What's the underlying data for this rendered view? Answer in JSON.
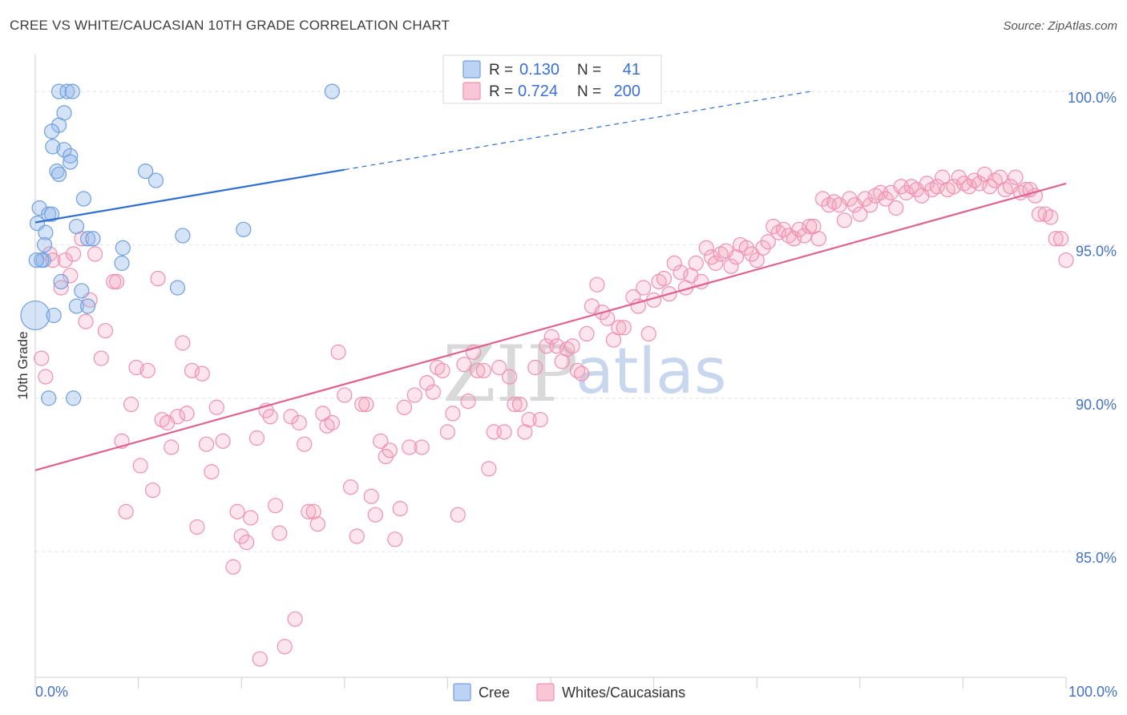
{
  "title": "CREE VS WHITE/CAUCASIAN 10TH GRADE CORRELATION CHART",
  "source": "Source: ZipAtlas.com",
  "watermark": {
    "part1": "ZIP",
    "part2": "atlas"
  },
  "legend": {
    "r_label": "R =",
    "n_label": "N =",
    "rows": [
      {
        "name": "Cree",
        "r": "0.130",
        "n": "41"
      },
      {
        "name": "Whites/Caucasians",
        "r": "0.724",
        "n": "200"
      }
    ]
  },
  "colors": {
    "cree": "#6f9fe0",
    "cree_line": "#2f6fd0",
    "white": "#f090b0",
    "white_line": "#e0628e",
    "tick_label": "#4472c4"
  },
  "chart_data": {
    "type": "scatter",
    "title": "CREE VS WHITE/CAUCASIAN 10TH GRADE CORRELATION CHART",
    "xlabel": "",
    "ylabel": "10th Grade",
    "xlim": [
      0,
      100
    ],
    "ylim": [
      80.9,
      101.1
    ],
    "x_tick_labels": [
      "0.0%",
      "100.0%"
    ],
    "y_ticks": [
      85,
      90,
      95,
      100
    ],
    "y_tick_labels": [
      "85.0%",
      "90.0%",
      "95.0%",
      "100.0%"
    ],
    "grid": true,
    "series": [
      {
        "name": "Cree",
        "r": 0.13,
        "n": 41,
        "trend": {
          "x0": 0,
          "y0": 95.73,
          "x1": 30,
          "y1": 97.45,
          "dash_x1": 75.2,
          "dash_y1": 100.0
        },
        "points": [
          [
            2.3,
            100
          ],
          [
            3.1,
            100
          ],
          [
            3.6,
            100
          ],
          [
            28.8,
            100
          ],
          [
            2.8,
            99.3
          ],
          [
            2.3,
            98.9
          ],
          [
            1.6,
            98.7
          ],
          [
            1.7,
            98.2
          ],
          [
            2.8,
            98.1
          ],
          [
            3.4,
            97.9
          ],
          [
            3.4,
            97.7
          ],
          [
            2.1,
            97.4
          ],
          [
            2.3,
            97.3
          ],
          [
            10.7,
            97.4
          ],
          [
            11.7,
            97.1
          ],
          [
            4.7,
            96.5
          ],
          [
            0.4,
            96.2
          ],
          [
            1.3,
            96.0
          ],
          [
            1.6,
            96.0
          ],
          [
            0.2,
            95.7
          ],
          [
            4.0,
            95.6
          ],
          [
            20.2,
            95.5
          ],
          [
            1.0,
            95.4
          ],
          [
            14.3,
            95.3
          ],
          [
            5.1,
            95.2
          ],
          [
            5.6,
            95.2
          ],
          [
            0.9,
            95.0
          ],
          [
            8.5,
            94.9
          ],
          [
            0.8,
            94.5
          ],
          [
            0.6,
            94.5
          ],
          [
            8.4,
            94.4
          ],
          [
            2.5,
            93.8
          ],
          [
            4.5,
            93.5
          ],
          [
            13.8,
            93.6
          ],
          [
            4.0,
            93.0
          ],
          [
            5.1,
            93.0
          ],
          [
            0.0,
            92.7
          ],
          [
            1.8,
            92.7
          ],
          [
            1.3,
            90.0
          ],
          [
            3.7,
            90.0
          ],
          [
            0.1,
            94.5
          ]
        ]
      },
      {
        "name": "Whites/Caucasians",
        "r": 0.724,
        "n": 200,
        "trend": {
          "x0": 0,
          "y0": 87.65,
          "x1": 100,
          "y1": 97.0
        },
        "points": [
          [
            0.6,
            91.3
          ],
          [
            1.0,
            90.7
          ],
          [
            1.4,
            94.7
          ],
          [
            1.7,
            94.5
          ],
          [
            2.5,
            93.6
          ],
          [
            2.9,
            94.5
          ],
          [
            3.4,
            94.0
          ],
          [
            3.7,
            94.7
          ],
          [
            4.5,
            95.2
          ],
          [
            4.9,
            92.5
          ],
          [
            5.3,
            93.2
          ],
          [
            5.8,
            94.7
          ],
          [
            6.4,
            91.3
          ],
          [
            6.8,
            92.2
          ],
          [
            7.6,
            93.8
          ],
          [
            7.9,
            93.8
          ],
          [
            8.4,
            88.6
          ],
          [
            8.8,
            86.3
          ],
          [
            9.3,
            89.8
          ],
          [
            9.8,
            91.0
          ],
          [
            10.2,
            87.8
          ],
          [
            10.9,
            90.9
          ],
          [
            11.4,
            87.0
          ],
          [
            11.9,
            93.9
          ],
          [
            12.3,
            89.3
          ],
          [
            12.8,
            89.2
          ],
          [
            13.2,
            88.4
          ],
          [
            13.8,
            89.4
          ],
          [
            14.3,
            91.8
          ],
          [
            14.7,
            89.5
          ],
          [
            15.2,
            90.9
          ],
          [
            15.7,
            85.8
          ],
          [
            16.2,
            90.8
          ],
          [
            16.6,
            88.5
          ],
          [
            17.1,
            87.6
          ],
          [
            17.6,
            89.7
          ],
          [
            18.2,
            88.6
          ],
          [
            19.2,
            84.5
          ],
          [
            19.6,
            86.3
          ],
          [
            20.0,
            85.5
          ],
          [
            20.5,
            85.3
          ],
          [
            20.9,
            86.1
          ],
          [
            21.5,
            88.7
          ],
          [
            21.8,
            81.5
          ],
          [
            22.4,
            89.6
          ],
          [
            22.8,
            89.4
          ],
          [
            23.3,
            86.5
          ],
          [
            23.7,
            85.6
          ],
          [
            24.2,
            81.9
          ],
          [
            24.8,
            89.4
          ],
          [
            25.2,
            82.8
          ],
          [
            25.6,
            89.2
          ],
          [
            26.1,
            88.5
          ],
          [
            26.5,
            86.3
          ],
          [
            27.0,
            86.3
          ],
          [
            27.4,
            85.9
          ],
          [
            27.9,
            89.5
          ],
          [
            28.3,
            89.1
          ],
          [
            28.8,
            89.2
          ],
          [
            29.4,
            91.5
          ],
          [
            30.0,
            90.1
          ],
          [
            30.6,
            87.1
          ],
          [
            31.2,
            85.5
          ],
          [
            31.7,
            89.8
          ],
          [
            32.1,
            89.8
          ],
          [
            32.6,
            86.8
          ],
          [
            33.0,
            86.2
          ],
          [
            33.5,
            88.6
          ],
          [
            34.0,
            88.1
          ],
          [
            34.4,
            88.3
          ],
          [
            34.9,
            85.4
          ],
          [
            35.4,
            86.4
          ],
          [
            35.8,
            89.7
          ],
          [
            36.3,
            88.4
          ],
          [
            36.8,
            90.1
          ],
          [
            37.5,
            88.4
          ],
          [
            38.0,
            90.5
          ],
          [
            38.6,
            90.2
          ],
          [
            39.0,
            91.0
          ],
          [
            39.5,
            90.9
          ],
          [
            40.0,
            88.9
          ],
          [
            40.5,
            89.5
          ],
          [
            41.0,
            86.2
          ],
          [
            41.6,
            91.1
          ],
          [
            42.0,
            89.9
          ],
          [
            42.5,
            91.5
          ],
          [
            42.9,
            90.9
          ],
          [
            43.5,
            90.9
          ],
          [
            44.0,
            87.7
          ],
          [
            44.5,
            88.9
          ],
          [
            45.0,
            91.0
          ],
          [
            45.5,
            88.9
          ],
          [
            46.0,
            90.7
          ],
          [
            46.5,
            89.8
          ],
          [
            47.0,
            89.8
          ],
          [
            47.5,
            88.9
          ],
          [
            47.9,
            89.3
          ],
          [
            48.5,
            91.0
          ],
          [
            49.0,
            89.3
          ],
          [
            49.6,
            91.7
          ],
          [
            50.1,
            92.0
          ],
          [
            50.6,
            91.7
          ],
          [
            51.1,
            91.2
          ],
          [
            51.6,
            91.6
          ],
          [
            52.1,
            91.7
          ],
          [
            52.6,
            90.9
          ],
          [
            53.0,
            90.8
          ],
          [
            53.5,
            92.1
          ],
          [
            54.0,
            93.0
          ],
          [
            54.5,
            93.7
          ],
          [
            55.0,
            92.8
          ],
          [
            55.5,
            92.6
          ],
          [
            56.1,
            91.9
          ],
          [
            56.6,
            92.3
          ],
          [
            57.1,
            92.3
          ],
          [
            58.0,
            93.3
          ],
          [
            58.5,
            93.0
          ],
          [
            59.0,
            93.6
          ],
          [
            59.5,
            92.1
          ],
          [
            60.0,
            93.2
          ],
          [
            60.5,
            93.8
          ],
          [
            61.0,
            93.9
          ],
          [
            61.5,
            93.4
          ],
          [
            62.0,
            94.4
          ],
          [
            62.6,
            94.1
          ],
          [
            63.1,
            93.6
          ],
          [
            63.6,
            94.0
          ],
          [
            64.1,
            94.4
          ],
          [
            64.6,
            93.8
          ],
          [
            65.1,
            94.9
          ],
          [
            65.6,
            94.6
          ],
          [
            66.0,
            94.4
          ],
          [
            66.5,
            94.7
          ],
          [
            67.0,
            94.8
          ],
          [
            67.5,
            94.3
          ],
          [
            68.0,
            94.6
          ],
          [
            68.4,
            95.0
          ],
          [
            69.0,
            94.9
          ],
          [
            69.5,
            94.7
          ],
          [
            70.0,
            94.5
          ],
          [
            70.6,
            94.9
          ],
          [
            71.1,
            95.1
          ],
          [
            71.6,
            95.6
          ],
          [
            72.1,
            95.4
          ],
          [
            72.6,
            95.5
          ],
          [
            73.1,
            95.3
          ],
          [
            73.6,
            95.2
          ],
          [
            74.1,
            95.5
          ],
          [
            74.6,
            95.3
          ],
          [
            75.1,
            95.6
          ],
          [
            75.5,
            95.6
          ],
          [
            76.0,
            95.2
          ],
          [
            76.4,
            96.5
          ],
          [
            77.0,
            96.3
          ],
          [
            77.5,
            96.4
          ],
          [
            78.0,
            96.3
          ],
          [
            78.5,
            95.8
          ],
          [
            79.0,
            96.5
          ],
          [
            79.5,
            96.3
          ],
          [
            80.0,
            96.0
          ],
          [
            80.5,
            96.5
          ],
          [
            81.0,
            96.3
          ],
          [
            81.5,
            96.6
          ],
          [
            82.0,
            96.7
          ],
          [
            82.5,
            96.5
          ],
          [
            83.0,
            96.7
          ],
          [
            83.5,
            96.2
          ],
          [
            84.0,
            96.9
          ],
          [
            84.5,
            96.7
          ],
          [
            85.0,
            96.9
          ],
          [
            85.5,
            96.8
          ],
          [
            86.0,
            96.6
          ],
          [
            86.5,
            97.0
          ],
          [
            87.0,
            96.8
          ],
          [
            87.5,
            96.9
          ],
          [
            88.0,
            97.2
          ],
          [
            88.5,
            96.8
          ],
          [
            89.1,
            96.9
          ],
          [
            89.6,
            97.2
          ],
          [
            90.1,
            97.0
          ],
          [
            90.6,
            96.9
          ],
          [
            91.1,
            97.1
          ],
          [
            91.6,
            97.0
          ],
          [
            92.1,
            97.3
          ],
          [
            92.6,
            96.9
          ],
          [
            93.1,
            97.1
          ],
          [
            93.6,
            97.2
          ],
          [
            94.1,
            96.8
          ],
          [
            94.6,
            96.9
          ],
          [
            95.1,
            97.2
          ],
          [
            95.6,
            96.7
          ],
          [
            96.1,
            96.8
          ],
          [
            96.5,
            96.8
          ],
          [
            97.0,
            96.6
          ],
          [
            97.4,
            96.0
          ],
          [
            98.0,
            96.0
          ],
          [
            98.5,
            95.9
          ],
          [
            99.0,
            95.2
          ],
          [
            99.5,
            95.2
          ],
          [
            100.0,
            94.5
          ]
        ]
      }
    ]
  }
}
